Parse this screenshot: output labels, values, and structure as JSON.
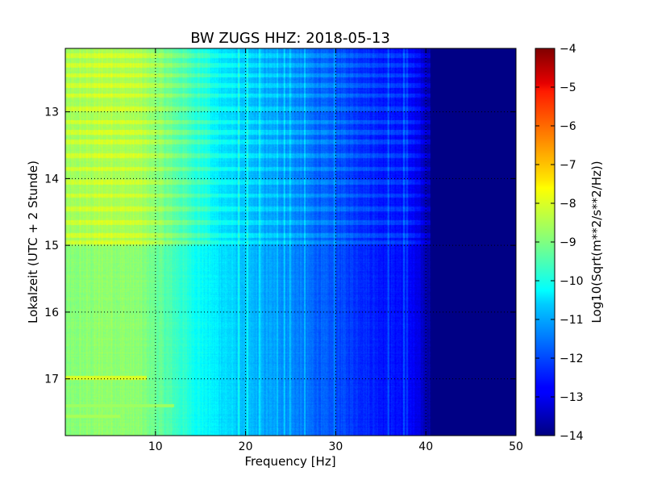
{
  "chart_data": {
    "type": "heatmap",
    "title": "BW ZUGS HHZ: 2018-05-13",
    "xlabel": "Frequency [Hz]",
    "ylabel": "Lokalzeit (UTC + 2 Stunde)",
    "xlim": [
      0,
      50
    ],
    "ylim": [
      12.05,
      17.85
    ],
    "y_inverted": true,
    "x_ticks": [
      10,
      20,
      30,
      40,
      50
    ],
    "y_ticks": [
      13,
      14,
      15,
      16,
      17
    ],
    "grid": true,
    "colormap": "jet",
    "colorbar": {
      "label": "Log10(Sqrt(m**2/s**2/Hz))",
      "min": -14,
      "max": -4,
      "ticks": [
        -4,
        -5,
        -6,
        -7,
        -8,
        -9,
        -10,
        -11,
        -12,
        -13,
        -14
      ]
    },
    "psd_profile": {
      "frequency_hz": [
        0,
        2,
        5,
        8,
        10,
        12,
        15,
        18,
        20,
        22,
        25,
        28,
        30,
        33,
        35,
        37,
        38,
        39,
        40,
        42,
        45,
        50
      ],
      "value": [
        -9.0,
        -8.9,
        -8.8,
        -8.9,
        -9.2,
        -9.6,
        -10.2,
        -10.6,
        -10.9,
        -11.1,
        -11.4,
        -11.8,
        -12.0,
        -12.3,
        -12.5,
        -12.6,
        -12.7,
        -13.0,
        -13.5,
        -13.9,
        -14.0,
        -14.0
      ]
    },
    "noisy_hour_bands": [
      12.15,
      12.3,
      12.45,
      12.6,
      12.75,
      12.95,
      13.15,
      13.3,
      13.45,
      13.65,
      13.85,
      14.05,
      14.25,
      14.45,
      14.65,
      14.85,
      14.95
    ],
    "bright_line_frequencies_hz": [
      19.2,
      20.2,
      21.5,
      23.5,
      24.3,
      24.9,
      26.5,
      29.8,
      35.8,
      37.5,
      37.9
    ],
    "low_frequency_streaks": [
      {
        "time": 16.98,
        "from_hz": 0,
        "to_hz": 9,
        "value": -8.1
      },
      {
        "time": 17.4,
        "from_hz": 0,
        "to_hz": 12,
        "value": -8.7
      },
      {
        "time": 17.55,
        "from_hz": 0,
        "to_hz": 6,
        "value": -8.6
      }
    ]
  }
}
